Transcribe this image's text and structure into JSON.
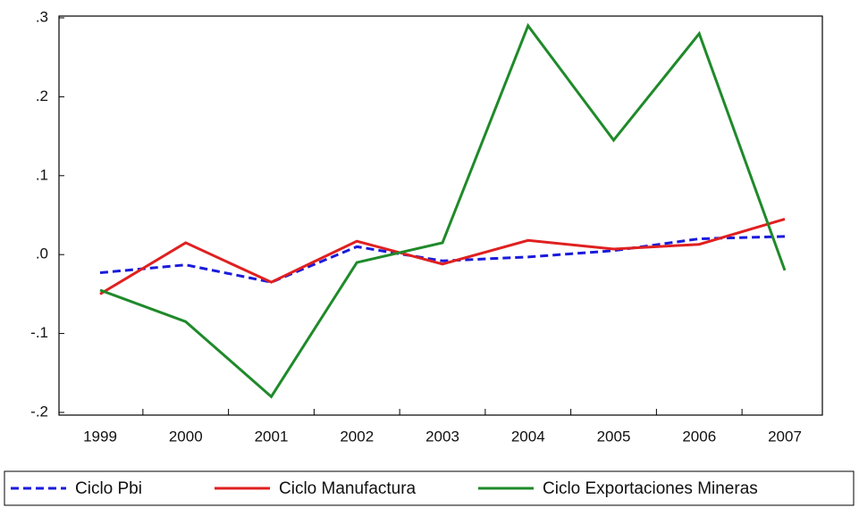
{
  "chart_data": {
    "type": "line",
    "categories": [
      "1999",
      "2000",
      "2001",
      "2002",
      "2003",
      "2004",
      "2005",
      "2006",
      "2007"
    ],
    "series": [
      {
        "name": "Ciclo Pbi",
        "color": "#1a1adc",
        "dash": true,
        "values": [
          -0.023,
          -0.013,
          -0.035,
          0.01,
          -0.008,
          -0.003,
          0.005,
          0.02,
          0.023
        ]
      },
      {
        "name": "Ciclo Manufactura",
        "color": "#e02020",
        "dash": false,
        "values": [
          -0.05,
          0.015,
          -0.035,
          0.017,
          -0.012,
          0.018,
          0.007,
          0.013,
          0.045
        ]
      },
      {
        "name": "Ciclo Exportaciones Mineras",
        "color": "#1f8a2a",
        "dash": false,
        "values": [
          -0.045,
          -0.085,
          -0.18,
          -0.01,
          0.015,
          0.29,
          0.145,
          0.28,
          -0.02
        ]
      }
    ],
    "ylim": [
      -0.2,
      0.3
    ],
    "yticks": [
      {
        "value": -0.2,
        "label": "-.2"
      },
      {
        "value": -0.1,
        "label": "-.1"
      },
      {
        "value": 0,
        "label": ".0"
      },
      {
        "value": 0.1,
        "label": ".1"
      },
      {
        "value": 0.2,
        "label": ".2"
      },
      {
        "value": 0.3,
        "label": ".3"
      }
    ],
    "grid": false
  }
}
